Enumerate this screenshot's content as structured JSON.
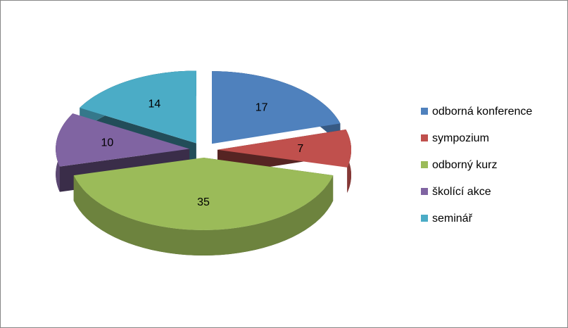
{
  "chart_data": {
    "type": "pie",
    "categories": [
      "odborná konference",
      "sympozium",
      "odborný kurz",
      "školící akce",
      "seminář"
    ],
    "values": [
      17,
      7,
      35,
      10,
      14
    ],
    "colors": [
      "#4f81bd",
      "#c0504d",
      "#9bbb59",
      "#8064a2",
      "#4bacc6"
    ],
    "legend": "right"
  }
}
